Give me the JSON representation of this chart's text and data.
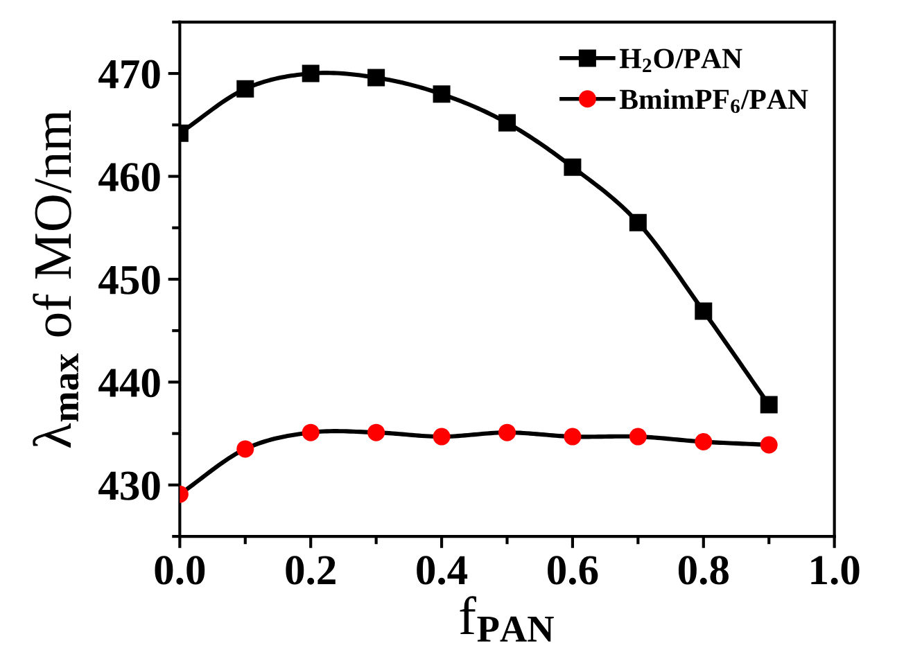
{
  "chart_data": {
    "type": "line",
    "xlabel": "f$_{PAN}$",
    "ylabel": "λ$_{max}$ of MO/nm",
    "x": [
      0.0,
      0.1,
      0.2,
      0.3,
      0.4,
      0.5,
      0.6,
      0.7,
      0.8,
      0.9
    ],
    "series": [
      {
        "name": "H$_{2}$O/PAN",
        "color": "#000000",
        "marker": "square",
        "values": [
          464.2,
          468.5,
          470.0,
          469.6,
          468.0,
          465.2,
          460.9,
          455.5,
          446.9,
          437.8
        ]
      },
      {
        "name": "BmimPF$_{6}$/PAN",
        "color": "#ff0000",
        "marker": "circle",
        "values": [
          429.1,
          433.5,
          435.1,
          435.1,
          434.7,
          435.1,
          434.7,
          434.7,
          434.2,
          433.9
        ]
      }
    ],
    "xlim": [
      0.0,
      1.0
    ],
    "xticks": [
      {
        "value": 0,
        "label": "0.0"
      },
      0.2,
      0.4,
      0.6,
      0.8,
      {
        "value": 1,
        "label": "1.0"
      }
    ],
    "ylim": [
      425,
      475
    ],
    "yticks": [
      430,
      440,
      450,
      460,
      470
    ],
    "grid": false,
    "legend": "top right",
    "line_style": "solid"
  }
}
